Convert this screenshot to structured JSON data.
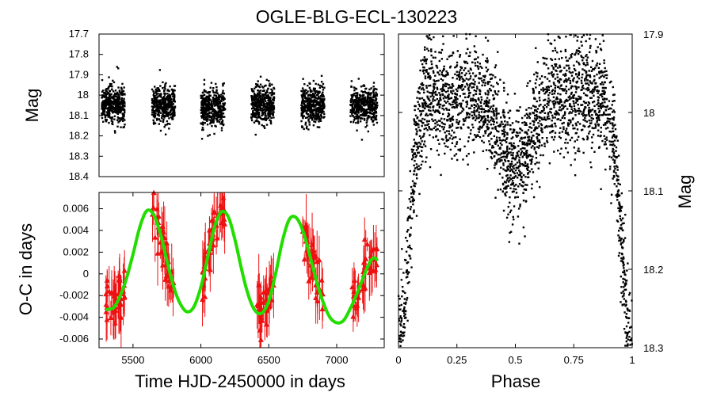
{
  "title": "OGLE-BLG-ECL-130223",
  "chart_data": [
    {
      "type": "scatter",
      "panel": "light-curve",
      "xlabel": "",
      "ylabel": "Mag",
      "xlim": [
        5250,
        7350
      ],
      "ylim": [
        18.4,
        17.7
      ],
      "y_ticks": [
        "17.7",
        "17.8",
        "17.9",
        "18",
        "18.1",
        "18.2",
        "18.3",
        "18.4"
      ],
      "y_tick_values": [
        17.7,
        17.8,
        17.9,
        18.0,
        18.1,
        18.2,
        18.3,
        18.4
      ],
      "seasons": [
        {
          "start": 5270,
          "end": 5440,
          "mean_mag": 18.05
        },
        {
          "start": 5640,
          "end": 5810,
          "mean_mag": 18.05
        },
        {
          "start": 6000,
          "end": 6180,
          "mean_mag": 18.06
        },
        {
          "start": 6370,
          "end": 6540,
          "mean_mag": 18.05
        },
        {
          "start": 6740,
          "end": 6910,
          "mean_mag": 18.05
        },
        {
          "start": 7100,
          "end": 7300,
          "mean_mag": 18.05
        }
      ]
    },
    {
      "type": "scatter",
      "panel": "o-c",
      "xlabel": "Time HJD-2450000 in days",
      "ylabel": "O-C in days",
      "xlim": [
        5250,
        7350
      ],
      "ylim": [
        -0.0068,
        0.0075
      ],
      "x_ticks": [
        "5500",
        "6000",
        "6500",
        "7000"
      ],
      "x_tick_values": [
        5500,
        6000,
        6500,
        7000
      ],
      "y_ticks": [
        "0.006",
        "0.004",
        "0.002",
        "0",
        "-0.002",
        "-0.004",
        "-0.006"
      ],
      "y_tick_values": [
        0.006,
        0.004,
        0.002,
        0.0,
        -0.002,
        -0.004,
        -0.006
      ],
      "model_fit": {
        "name": "sinusoidal fit",
        "color": "#22dd00",
        "x": [
          5300,
          5350,
          5400,
          5450,
          5500,
          5550,
          5600,
          5650,
          5700,
          5750,
          5800,
          5850,
          5900,
          5950,
          6000,
          6050,
          6100,
          6150,
          6200,
          6250,
          6300,
          6350,
          6400,
          6450,
          6500,
          6550,
          6600,
          6650,
          6700,
          6750,
          6800,
          6850,
          6900,
          6950,
          7000,
          7050,
          7100,
          7150,
          7200,
          7250,
          7300
        ],
        "y": [
          -0.0033,
          -0.0032,
          -0.0022,
          -0.0005,
          0.0018,
          0.0043,
          0.0058,
          0.0055,
          0.0038,
          0.0012,
          -0.0012,
          -0.0028,
          -0.0035,
          -0.003,
          -0.0012,
          0.0015,
          0.0043,
          0.0057,
          0.0053,
          0.0032,
          0.0004,
          -0.002,
          -0.0034,
          -0.0036,
          -0.0025,
          0.0,
          0.003,
          0.005,
          0.0052,
          0.004,
          0.0018,
          -0.0006,
          -0.0026,
          -0.004,
          -0.0045,
          -0.0043,
          -0.0032,
          -0.0018,
          -0.0002,
          0.0012,
          0.0018
        ]
      },
      "observations": {
        "name": "O-C measurements",
        "color": "#ee1111",
        "marker": "triangle",
        "seasons": [
          [
            5290,
            5440
          ],
          [
            5640,
            5800
          ],
          [
            6010,
            6180
          ],
          [
            6380,
            6540
          ],
          [
            6740,
            6900
          ],
          [
            7110,
            7300
          ]
        ],
        "typical_error": 0.0015
      }
    },
    {
      "type": "scatter",
      "panel": "phased",
      "xlabel": "Phase",
      "ylabel": "Mag",
      "xlim": [
        0,
        1
      ],
      "ylim": [
        18.3,
        17.9
      ],
      "x_ticks": [
        "0",
        "0.25",
        "0.5",
        "0.75",
        "1"
      ],
      "x_tick_values": [
        0,
        0.25,
        0.5,
        0.75,
        1
      ],
      "y_ticks": [
        "17.9",
        "18",
        "18.1",
        "18.2",
        "18.3"
      ],
      "y_tick_values": [
        17.9,
        18.0,
        18.1,
        18.2,
        18.3
      ],
      "primary_minimum": {
        "phase": 0.0,
        "mag": 18.3
      },
      "secondary_minimum": {
        "phase": 0.5,
        "mag": 18.07
      },
      "maximum_mag": 17.98
    }
  ]
}
